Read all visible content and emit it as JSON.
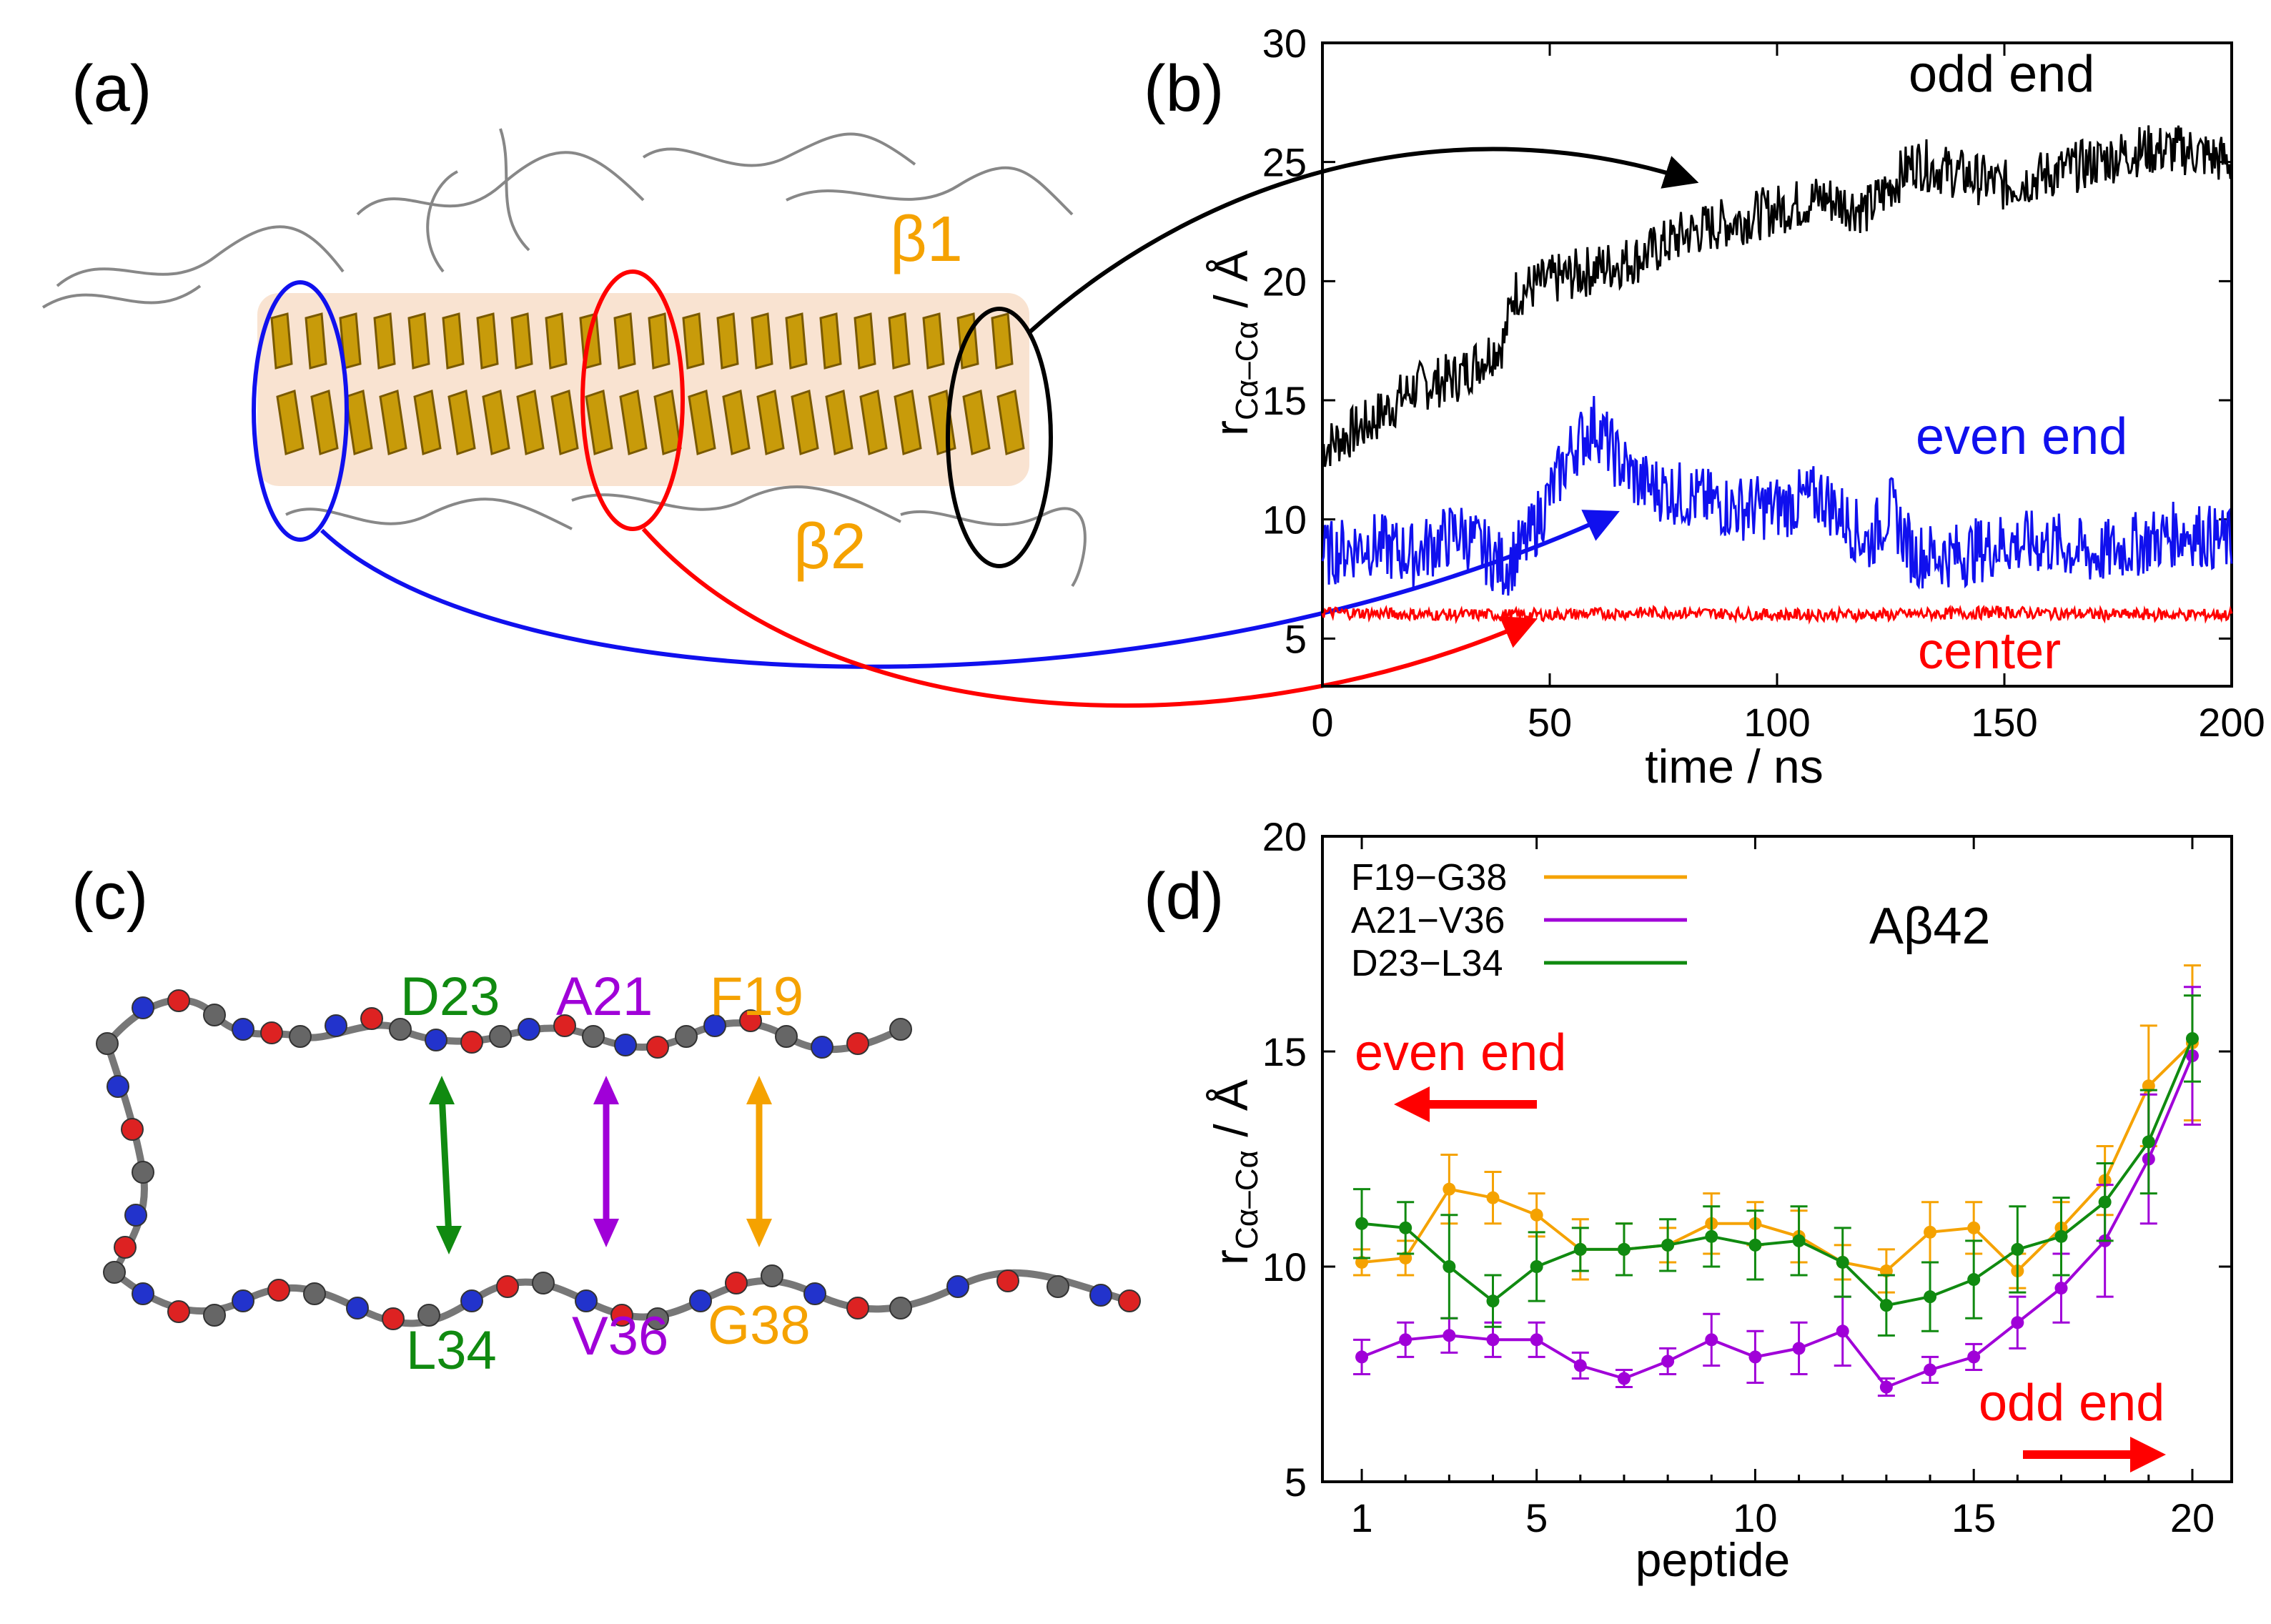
{
  "panels": {
    "a": {
      "label": "(a)",
      "beta1": "β1",
      "beta2": "β2"
    },
    "b": {
      "label": "(b)",
      "ylabel_r": "r",
      "ylabel_sub": "Cα–Cα",
      "ylabel_unit": " / Å",
      "legend": {
        "odd": "odd end",
        "even": "even end",
        "center": "center"
      }
    },
    "c": {
      "label": "(c)",
      "residues_top": [
        "D23",
        "A21",
        "F19"
      ],
      "residues_bottom": [
        "L34",
        "V36",
        "G38"
      ]
    },
    "d": {
      "label": "(d)",
      "title": "Aβ42",
      "legend": [
        "F19−G38",
        "A21−V36",
        "D23−L34"
      ],
      "even_end": "even end",
      "odd_end": "odd end"
    }
  },
  "colors": {
    "black": "#000000",
    "blue": "#1010ee",
    "red": "#ff0000",
    "orange": "#f5a200",
    "purple": "#a000d8",
    "green": "#108a10"
  },
  "chart_data": [
    {
      "type": "line",
      "title": "",
      "xlabel": "time / ns",
      "ylabel": "rCα–Cα / Å",
      "xlim": [
        0,
        200
      ],
      "ylim": [
        3,
        30
      ],
      "xticks": [
        "0",
        "50",
        "100",
        "150",
        "200"
      ],
      "yticks": [
        "5",
        "10",
        "15",
        "20",
        "25",
        "30"
      ],
      "series": [
        {
          "name": "odd end",
          "color": "#000000",
          "x": [
            0,
            10,
            20,
            30,
            40,
            42,
            50,
            60,
            70,
            80,
            90,
            100,
            110,
            120,
            130,
            140,
            150,
            160,
            170,
            180,
            190,
            200
          ],
          "values": [
            13,
            14,
            15.5,
            16,
            17.5,
            19.5,
            20,
            20.5,
            21,
            22,
            22.5,
            23,
            23.5,
            23,
            25,
            24.5,
            24,
            24.5,
            25,
            25.5,
            25.5,
            25
          ]
        },
        {
          "name": "even end",
          "color": "#1010ee",
          "x": [
            0,
            10,
            20,
            30,
            40,
            45,
            50,
            55,
            60,
            65,
            70,
            80,
            90,
            100,
            110,
            115,
            120,
            125,
            130,
            140,
            150,
            160,
            170,
            180,
            190,
            200
          ],
          "values": [
            8.5,
            9,
            8.5,
            9.5,
            8,
            9,
            11,
            13,
            14,
            12.5,
            11.5,
            11,
            10.5,
            10.5,
            11,
            10,
            9,
            10.5,
            8.5,
            8.5,
            9,
            9,
            8.5,
            9,
            9.5,
            9
          ]
        },
        {
          "name": "center",
          "color": "#ff0000",
          "x": [
            0,
            25,
            50,
            75,
            100,
            125,
            150,
            175,
            200
          ],
          "values": [
            6.1,
            6.0,
            6.0,
            6.1,
            6.0,
            6.0,
            6.1,
            6.0,
            6.0
          ]
        }
      ]
    },
    {
      "type": "line",
      "title": "Aβ42",
      "xlabel": "peptide",
      "ylabel": "rCα–Cα / Å",
      "xlim": [
        0.1,
        20.9
      ],
      "ylim": [
        5,
        20
      ],
      "xticks": [
        "1",
        "5",
        "10",
        "15",
        "20"
      ],
      "yticks": [
        "5",
        "10",
        "15",
        "20"
      ],
      "x": [
        1,
        2,
        3,
        4,
        5,
        6,
        7,
        8,
        9,
        10,
        11,
        12,
        13,
        14,
        15,
        16,
        17,
        18,
        19,
        20
      ],
      "series": [
        {
          "name": "F19−G38",
          "color": "#f5a200",
          "values": [
            10.1,
            10.2,
            11.8,
            11.6,
            11.2,
            10.4,
            10.4,
            10.5,
            11.0,
            11.0,
            10.7,
            10.1,
            9.9,
            10.8,
            10.9,
            9.9,
            10.9,
            12.0,
            14.2,
            15.2
          ],
          "errors": [
            0.3,
            0.4,
            0.8,
            0.6,
            0.5,
            0.7,
            0.6,
            0.4,
            0.7,
            0.5,
            0.6,
            0.4,
            0.5,
            0.7,
            0.6,
            0.4,
            0.6,
            0.8,
            1.4,
            1.8
          ]
        },
        {
          "name": "A21−V36",
          "color": "#a000d8",
          "values": [
            7.9,
            8.3,
            8.4,
            8.3,
            8.3,
            7.7,
            7.4,
            7.8,
            8.3,
            7.9,
            8.1,
            8.5,
            7.2,
            7.6,
            7.9,
            8.7,
            9.5,
            10.6,
            12.5,
            14.9
          ],
          "errors": [
            0.4,
            0.4,
            0.4,
            0.4,
            0.4,
            0.3,
            0.2,
            0.3,
            0.6,
            0.6,
            0.6,
            0.8,
            0.2,
            0.3,
            0.3,
            0.6,
            0.8,
            1.3,
            1.5,
            1.6
          ]
        },
        {
          "name": "D23−L34",
          "color": "#108a10",
          "values": [
            11.0,
            10.9,
            10.0,
            9.2,
            10.0,
            10.4,
            10.4,
            10.5,
            10.7,
            10.5,
            10.6,
            10.1,
            9.1,
            9.3,
            9.7,
            10.4,
            10.7,
            11.5,
            12.9,
            15.3
          ],
          "errors": [
            0.8,
            0.6,
            1.2,
            0.6,
            0.8,
            0.5,
            0.6,
            0.6,
            0.7,
            0.8,
            0.8,
            0.8,
            0.7,
            0.8,
            0.9,
            1.0,
            0.9,
            0.9,
            1.2,
            1.0
          ]
        }
      ]
    }
  ]
}
